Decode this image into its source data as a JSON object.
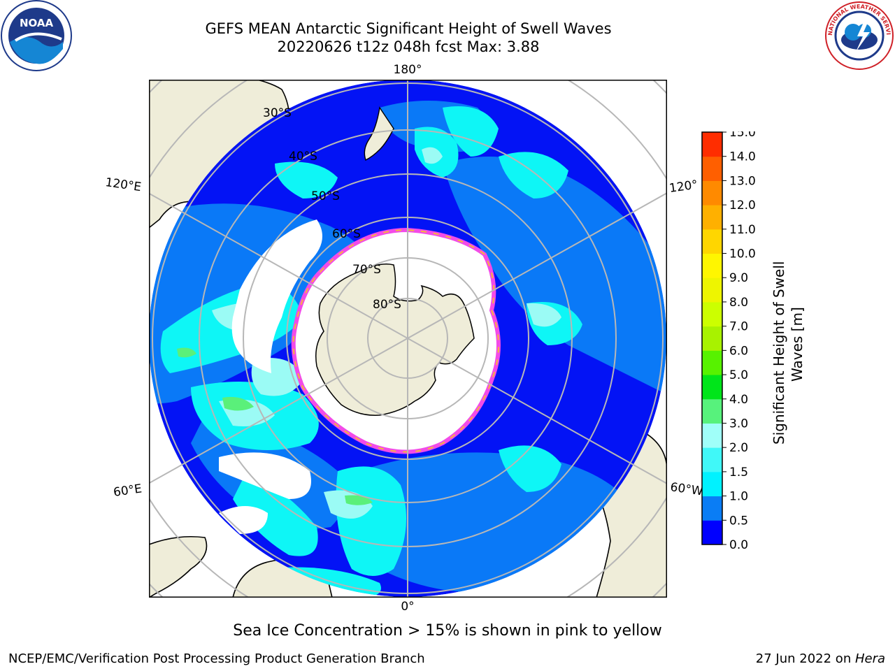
{
  "header": {
    "title_line1": "GEFS MEAN Antarctic Significant Height of Swell Waves",
    "title_line2": "20220626 t12z 048h fcst   Max: 3.88"
  },
  "logos": {
    "left_text": "NOAA",
    "right_text": "NATIONAL WEATHER SERVICE"
  },
  "map": {
    "projection": "south-polar-stereographic",
    "lon_labels": [
      {
        "text": "180°",
        "lon": 180
      },
      {
        "text": "120°E",
        "lon": 120
      },
      {
        "text": "120°",
        "lon": -120
      },
      {
        "text": "60°E",
        "lon": 60
      },
      {
        "text": "60°W",
        "lon": -60
      },
      {
        "text": "0°",
        "lon": 0
      }
    ],
    "lat_labels": [
      "30°S",
      "40°S",
      "50°S",
      "60°S",
      "70°S",
      "80°S"
    ],
    "colors": {
      "land": "#efedd9",
      "ocean_deep": "#0313f5",
      "ocean_mid": "#0a79f7",
      "ocean_light": "#0ef6f6",
      "ocean_lighter": "#3ff8f0",
      "ocean_pale": "#9bfbf5",
      "green": "#5af07a",
      "ice_edge": "#f24be8",
      "ice_yellow": "#f5b63c",
      "grid": "#b7b7b7"
    }
  },
  "colorbar": {
    "label_line1": "Significant Height of Swell",
    "label_line2": "Waves [m]",
    "ticks": [
      "0.0",
      "0.5",
      "1.0",
      "1.5",
      "2.0",
      "3.0",
      "4.0",
      "5.0",
      "6.0",
      "7.0",
      "8.0",
      "9.0",
      "10.0",
      "11.0",
      "12.0",
      "13.0",
      "14.0",
      "15.0"
    ],
    "colors": [
      "#0000ff",
      "#0a7df5",
      "#00f2ff",
      "#40f8f8",
      "#a0fff9",
      "#57f27c",
      "#00e51a",
      "#57f200",
      "#a8f200",
      "#ccff00",
      "#eef500",
      "#fff600",
      "#ffd600",
      "#ffb000",
      "#ff8a00",
      "#ff5f00",
      "#ff2d00"
    ]
  },
  "caption": "Sea Ice Concentration > 15% is shown in pink to yellow",
  "footer": {
    "left": "NCEP/EMC/Verification Post Processing Product Generation Branch",
    "right_prefix": "27 Jun 2022 on ",
    "right_host": "Hera"
  }
}
